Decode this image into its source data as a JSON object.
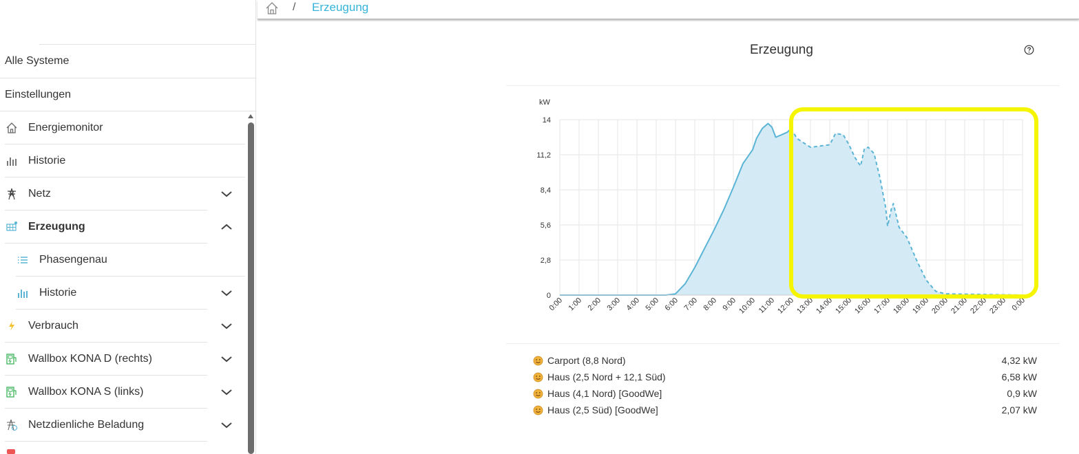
{
  "breadcrumb": {
    "current": "Erzeugung",
    "separator": "/"
  },
  "sidebar": {
    "items": [
      {
        "label": "Alle Systeme"
      },
      {
        "label": "Einstellungen"
      },
      {
        "label": "Energiemonitor",
        "icon": "home-icon"
      },
      {
        "label": "Historie",
        "icon": "bar-chart-icon"
      },
      {
        "label": "Netz",
        "icon": "power-tower-icon",
        "expand": "down"
      },
      {
        "label": "Erzeugung",
        "icon": "solar-panel-icon",
        "expand": "up",
        "active": true
      },
      {
        "label": "Phasengenau",
        "icon": "list-icon"
      },
      {
        "label": "Historie",
        "icon": "bar-chart-icon",
        "expand": "down"
      },
      {
        "label": "Verbrauch",
        "icon": "lightning-icon",
        "expand": "down"
      },
      {
        "label": "Wallbox KONA D (rechts)",
        "icon": "charging-station-icon",
        "expand": "down"
      },
      {
        "label": "Wallbox KONA S (links)",
        "icon": "charging-station-icon",
        "expand": "down"
      },
      {
        "label": "Netzdienliche Beladung",
        "icon": "grid-charging-icon",
        "expand": "down"
      }
    ]
  },
  "card": {
    "title": "Erzeugung",
    "help_icon": "help-circle-icon"
  },
  "chart_data": {
    "type": "area",
    "title": "",
    "ylabel": "kW",
    "xlabel": "",
    "ylim": [
      0,
      14
    ],
    "yticks": [
      "14",
      "11,2",
      "8,4",
      "5,6",
      "2,8",
      "0"
    ],
    "xticks": [
      "0:00",
      "1:00",
      "2:00",
      "3:00",
      "4:00",
      "5:00",
      "6:00",
      "7:00",
      "8:00",
      "9:00",
      "10:00",
      "11:00",
      "12:00",
      "13:00",
      "14:00",
      "15:00",
      "16:00",
      "17:00",
      "18:00",
      "19:00",
      "20:00",
      "21:00",
      "22:00",
      "23:00",
      "0:00"
    ],
    "grid": true,
    "color": "#5ab4d6",
    "fill": "#d4eaf4",
    "series": [
      {
        "style": "solid",
        "x": [
          0,
          5.5,
          6.0,
          6.5,
          7.0,
          7.5,
          8.0,
          8.5,
          9.0,
          9.5,
          10.0,
          10.2,
          10.5,
          10.8,
          11.0,
          11.2,
          11.5,
          11.8,
          12.0
        ],
        "y": [
          0,
          0,
          0.1,
          0.9,
          2.2,
          3.7,
          5.2,
          6.8,
          8.6,
          10.5,
          11.6,
          12.5,
          13.3,
          13.7,
          13.4,
          12.6,
          12.8,
          13.0,
          13.3
        ]
      },
      {
        "style": "dashed",
        "x": [
          12.0,
          12.3,
          13.0,
          13.5,
          14.0,
          14.3,
          14.7,
          15.0,
          15.3,
          15.6,
          15.8,
          16.0,
          16.3,
          16.6,
          16.9,
          17.0,
          17.2,
          17.3,
          17.6,
          18.0,
          18.5,
          19.0,
          19.5,
          20.0,
          24.0
        ],
        "y": [
          13.3,
          12.5,
          11.8,
          11.9,
          12.0,
          12.9,
          12.8,
          12.0,
          11.0,
          10.3,
          11.7,
          11.8,
          11.3,
          9.4,
          7.0,
          5.5,
          6.9,
          7.3,
          5.4,
          4.6,
          2.8,
          1.2,
          0.3,
          0.1,
          0
        ]
      }
    ]
  },
  "legend": [
    {
      "icon": "sun-face-icon",
      "name": "Carport (8,8 Nord)",
      "value": "4,32 kW"
    },
    {
      "icon": "sun-face-icon",
      "name": "Haus (2,5 Nord + 12,1 Süd)",
      "value": "6,58 kW"
    },
    {
      "icon": "sun-face-icon",
      "name": "Haus (4,1 Nord) [GoodWe]",
      "value": "0,9 kW"
    },
    {
      "icon": "sun-face-icon",
      "name": "Haus (2,5 Süd) [GoodWe]",
      "value": "2,07 kW"
    }
  ],
  "annotation": {
    "highlight_color": "#f6f500"
  }
}
